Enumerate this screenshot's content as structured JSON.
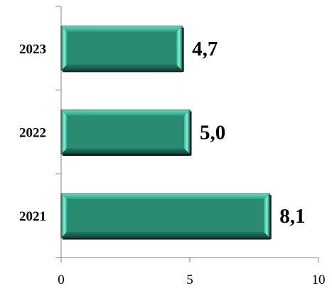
{
  "chart_data": {
    "type": "bar",
    "orientation": "horizontal",
    "categories": [
      "2021",
      "2022",
      "2023"
    ],
    "values": [
      8.1,
      5.0,
      4.7
    ],
    "data_labels": [
      "8,1",
      "5,0",
      "4,7"
    ],
    "xlim": [
      0,
      10
    ],
    "x_ticks": [
      0,
      5,
      10
    ],
    "x_tick_labels": [
      "0",
      "5",
      "10"
    ],
    "grid": false,
    "legend": "none",
    "colors": {
      "bar_fill": "#2a8a72",
      "bar_bevel_light": "#7ff5dc",
      "bar_bevel_dark": "#0e4a3c",
      "bar_edge": "#000000",
      "axis": "#808080"
    }
  }
}
